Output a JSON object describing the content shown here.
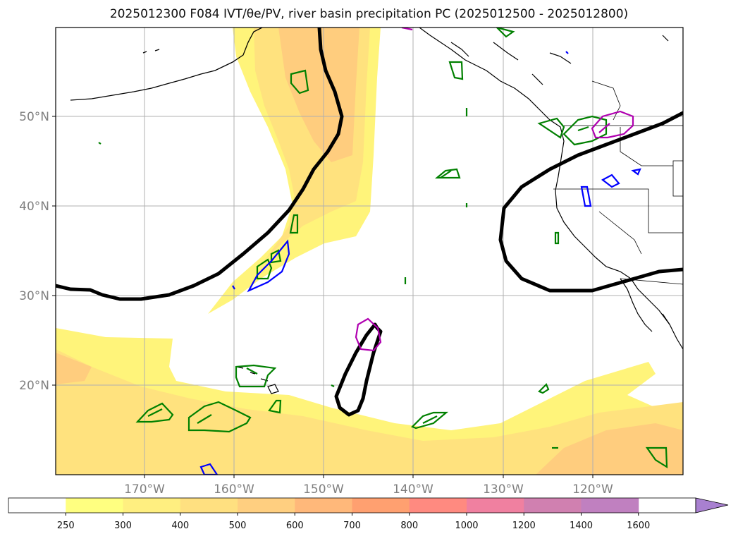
{
  "title": "2025012300 F084 IVT/θe/PV, river basin precipitation PC (2025012500 - 2025012800)",
  "lon_labels": [
    "170°W",
    "160°W",
    "150°W",
    "140°W",
    "130°W",
    "120°W"
  ],
  "lat_labels": [
    "50°N",
    "40°N",
    "30°N",
    "20°N"
  ],
  "colorbar": {
    "ticks": [
      "250",
      "300",
      "400",
      "500",
      "600",
      "700",
      "800",
      "1000",
      "1200",
      "1400",
      "1600"
    ],
    "colors": [
      "#ffffff",
      "#ffff80",
      "#ffef80",
      "#ffe080",
      "#ffcf80",
      "#ffb87a",
      "#ffa070",
      "#ff8a80",
      "#f080a0",
      "#d080b0",
      "#c080c0",
      "#a880d0"
    ]
  },
  "colors": {
    "ivt_low": "#fff47a",
    "ivt_mid": "#ffe27e",
    "ivt_high": "#ffcd7e",
    "theta_contour": "#000000",
    "pv_contour": "#008000",
    "precip_blue": "#0000ff",
    "precip_magenta": "#b000b0"
  }
}
